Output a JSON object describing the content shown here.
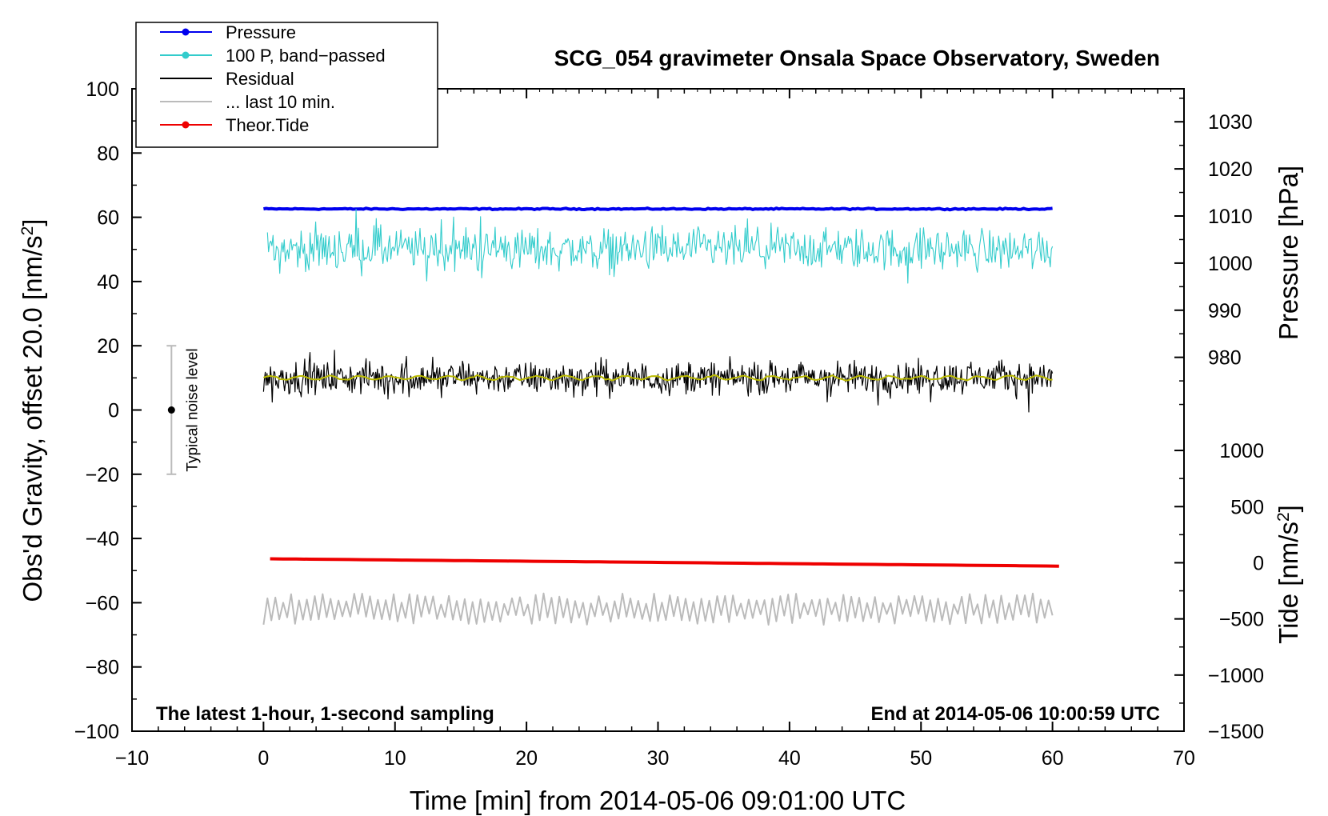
{
  "chart_data": {
    "type": "line",
    "title": "SCG_054 gravimeter Onsala Space Observatory, Sweden",
    "note_left": "The latest 1-hour, 1-second sampling",
    "note_right": "End at 2014-05-06 10:00:59 UTC",
    "xlabel": "Time [min] from 2014-05-06 09:01:00 UTC",
    "ylabel_left": "Obs'd Gravity, offset 20.0 [nm/s",
    "ylabel_left_sup": "2",
    "ylabel_left_close": "]",
    "ylabel_right_top": "Pressure [hPa]",
    "ylabel_right_bottom": "Tide [nm/s",
    "ylabel_right_bottom_sup": "2",
    "ylabel_right_bottom_close": "]",
    "xlim": [
      -10,
      70
    ],
    "ylim_left": [
      -100,
      100
    ],
    "x_ticks": [
      "−10",
      "0",
      "10",
      "20",
      "30",
      "40",
      "50",
      "60",
      "70"
    ],
    "x_tick_values": [
      -10,
      0,
      10,
      20,
      30,
      40,
      50,
      60,
      70
    ],
    "y_ticks_left": [
      "−100",
      "−80",
      "−60",
      "−40",
      "−20",
      "0",
      "20",
      "40",
      "60",
      "80",
      "100"
    ],
    "y_tick_values_left": [
      -100,
      -80,
      -60,
      -40,
      -20,
      0,
      20,
      40,
      60,
      80,
      100
    ],
    "pressure_axis": {
      "range": [
        965,
        1037
      ],
      "ticks": [
        "980",
        "990",
        "1000",
        "1010",
        "1020",
        "1030"
      ],
      "tick_values": [
        980,
        990,
        1000,
        1010,
        1020,
        1030
      ]
    },
    "tide_axis": {
      "range": [
        -1500,
        1200
      ],
      "ticks": [
        "−1500",
        "−1000",
        "−500",
        "0",
        "500",
        "1000"
      ],
      "tick_values": [
        -1500,
        -1000,
        -500,
        0,
        500,
        1000
      ]
    },
    "noise_bar": {
      "label": "Typical noise level",
      "x": -7,
      "center": 0,
      "low": -20,
      "high": 20,
      "color": "#bbbbbb"
    },
    "legend": [
      {
        "label": "Pressure",
        "color": "#0000ee",
        "marker": true
      },
      {
        "label": "100 P, band−passed",
        "color": "#33cccc",
        "marker": true
      },
      {
        "label": "Residual",
        "color": "#000000",
        "marker": false
      },
      {
        "label": "... last 10 min.",
        "color": "#bbbbbb",
        "marker": false
      },
      {
        "label": "Theor.Tide",
        "color": "#ee0000",
        "marker": true
      }
    ],
    "series": [
      {
        "name": "Pressure",
        "axis": "pressure",
        "color": "#0000ee",
        "x_range": [
          0,
          60
        ],
        "level": 1011.5,
        "amplitude": 0.2
      },
      {
        "name": "100 P, band−passed",
        "axis": "left",
        "color": "#33cccc",
        "x_range": [
          0.3,
          60
        ],
        "level": 50,
        "amplitude": 7
      },
      {
        "name": "Residual",
        "axis": "left",
        "color": "#000000",
        "x_range": [
          0,
          60
        ],
        "level": 10,
        "amplitude": 4.5
      },
      {
        "name": "Residual smoothed",
        "axis": "left",
        "color": "#bbbb00",
        "x_range": [
          0,
          60
        ],
        "level": 10,
        "amplitude": 0.6
      },
      {
        "name": "... last 10 min.",
        "axis": "left",
        "color": "#bbbbbb",
        "x_range": [
          0,
          60
        ],
        "level": -62,
        "amplitude": 3.5
      },
      {
        "name": "Theor.Tide",
        "axis": "tide",
        "color": "#ee0000",
        "x_range": [
          0.5,
          60.5
        ],
        "start": 35,
        "end": -30
      }
    ]
  }
}
